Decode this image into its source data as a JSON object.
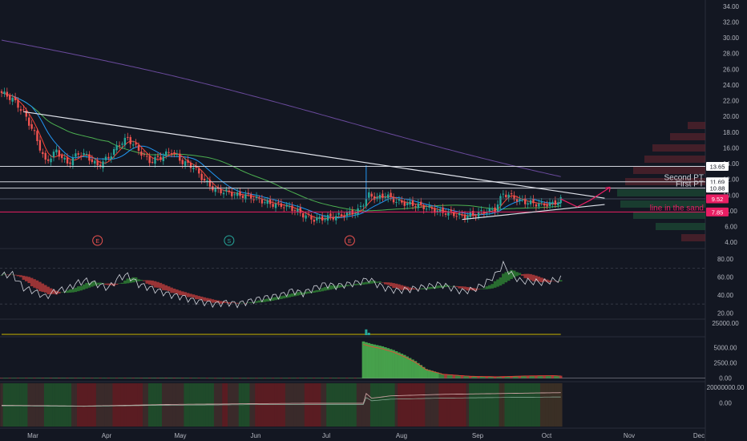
{
  "chart_data": {
    "type": "candlestick",
    "x_labels": [
      "Mar",
      "Apr",
      "May",
      "Jun",
      "Jul",
      "Aug",
      "Sep",
      "Oct",
      "Nov",
      "Dec"
    ],
    "price_axis": {
      "ticks": [
        "34.00",
        "32.00",
        "30.00",
        "28.00",
        "26.00",
        "24.00",
        "22.00",
        "20.00",
        "18.00",
        "16.00",
        "14.00",
        "12.00",
        "10.00",
        "8.00",
        "6.00",
        "4.00"
      ],
      "range": [
        3.2,
        34.8
      ]
    },
    "price_series": [
      [
        0,
        23.0
      ],
      [
        4,
        22.2
      ],
      [
        8,
        20.5
      ],
      [
        12,
        17.8
      ],
      [
        16,
        14.2
      ],
      [
        20,
        15.6
      ],
      [
        24,
        14.0
      ],
      [
        28,
        15.3
      ],
      [
        31,
        15.0
      ],
      [
        35,
        13.7
      ],
      [
        39,
        14.8
      ],
      [
        43,
        16.5
      ],
      [
        46,
        17.2
      ],
      [
        50,
        15.7
      ],
      [
        54,
        14.3
      ],
      [
        58,
        14.8
      ],
      [
        62,
        15.6
      ],
      [
        66,
        14.2
      ],
      [
        70,
        13.6
      ],
      [
        74,
        11.8
      ],
      [
        78,
        10.6
      ],
      [
        82,
        10.4
      ],
      [
        86,
        10.0
      ],
      [
        90,
        9.9
      ],
      [
        94,
        9.4
      ],
      [
        98,
        8.9
      ],
      [
        102,
        8.7
      ],
      [
        106,
        8.3
      ],
      [
        110,
        7.5
      ],
      [
        114,
        6.9
      ],
      [
        118,
        7.1
      ],
      [
        122,
        7.3
      ],
      [
        126,
        7.6
      ],
      [
        130,
        8.0
      ],
      [
        134,
        10.0
      ],
      [
        137,
        9.6
      ],
      [
        140,
        10.0
      ],
      [
        144,
        9.2
      ],
      [
        148,
        8.9
      ],
      [
        152,
        8.7
      ],
      [
        156,
        8.3
      ],
      [
        160,
        7.9
      ],
      [
        164,
        7.7
      ],
      [
        168,
        7.3
      ],
      [
        172,
        7.5
      ],
      [
        176,
        7.9
      ],
      [
        180,
        8.2
      ],
      [
        183,
        10.2
      ],
      [
        186,
        9.8
      ],
      [
        189,
        9.3
      ],
      [
        193,
        9.0
      ],
      [
        197,
        8.8
      ],
      [
        201,
        8.9
      ],
      [
        204,
        9.4
      ]
    ],
    "levels": [
      {
        "value": 13.65,
        "label": "13.65",
        "note": ""
      },
      {
        "value": 11.69,
        "label": "11.69",
        "note": "Second PT"
      },
      {
        "value": 10.88,
        "label": "10.88",
        "note": "First PT"
      },
      {
        "value": 9.52,
        "label": "9.52",
        "note": ""
      },
      {
        "value": 7.85,
        "label": "7.85",
        "note": "line in the sand"
      }
    ],
    "event_markers": [
      {
        "label": "E",
        "x": 35,
        "type": "earnings"
      },
      {
        "label": "S",
        "x": 83,
        "type": "split"
      },
      {
        "label": "E",
        "x": 127,
        "type": "earnings"
      }
    ],
    "rsi_panel": {
      "ticks": [
        "80.00",
        "60.00",
        "40.00",
        "20.00"
      ],
      "range": [
        15,
        90
      ],
      "series": [
        [
          0,
          62
        ],
        [
          4,
          63
        ],
        [
          8,
          48
        ],
        [
          12,
          44
        ],
        [
          16,
          38
        ],
        [
          20,
          45
        ],
        [
          24,
          47
        ],
        [
          28,
          54
        ],
        [
          31,
          56
        ],
        [
          35,
          52
        ],
        [
          39,
          48
        ],
        [
          43,
          60
        ],
        [
          46,
          62
        ],
        [
          50,
          52
        ],
        [
          54,
          48
        ],
        [
          58,
          44
        ],
        [
          62,
          40
        ],
        [
          66,
          38
        ],
        [
          70,
          34
        ],
        [
          74,
          32
        ],
        [
          78,
          30
        ],
        [
          82,
          32
        ],
        [
          86,
          30
        ],
        [
          90,
          33
        ],
        [
          94,
          36
        ],
        [
          98,
          38
        ],
        [
          102,
          40
        ],
        [
          106,
          45
        ],
        [
          110,
          42
        ],
        [
          114,
          48
        ],
        [
          118,
          52
        ],
        [
          122,
          50
        ],
        [
          126,
          52
        ],
        [
          130,
          54
        ],
        [
          134,
          58
        ],
        [
          137,
          52
        ],
        [
          140,
          48
        ],
        [
          144,
          45
        ],
        [
          148,
          46
        ],
        [
          152,
          48
        ],
        [
          156,
          50
        ],
        [
          160,
          52
        ],
        [
          164,
          48
        ],
        [
          168,
          44
        ],
        [
          172,
          46
        ],
        [
          176,
          52
        ],
        [
          180,
          62
        ],
        [
          183,
          74
        ],
        [
          186,
          63
        ],
        [
          189,
          56
        ],
        [
          193,
          55
        ],
        [
          197,
          54
        ],
        [
          201,
          56
        ],
        [
          204,
          58
        ]
      ]
    },
    "volume_panel": {
      "ticks": [
        "25000.00"
      ],
      "range": [
        0,
        30000
      ],
      "spike": [
        [
          111,
          12000
        ],
        [
          112,
          5000
        ]
      ]
    },
    "accumulation_panel": {
      "ticks": [
        "5000.00",
        "2500.00",
        "0.00"
      ],
      "range": [
        -300,
        6500
      ],
      "series": [
        [
          0,
          30
        ],
        [
          20,
          60
        ],
        [
          40,
          40
        ],
        [
          60,
          70
        ],
        [
          80,
          20
        ],
        [
          100,
          30
        ],
        [
          110,
          40
        ],
        [
          111,
          6000
        ],
        [
          114,
          5600
        ],
        [
          118,
          5200
        ],
        [
          122,
          4600
        ],
        [
          126,
          3800
        ],
        [
          130,
          2800
        ],
        [
          134,
          1500
        ],
        [
          140,
          700
        ],
        [
          150,
          350
        ],
        [
          160,
          250
        ],
        [
          170,
          400
        ],
        [
          180,
          450
        ],
        [
          190,
          300
        ],
        [
          204,
          200
        ]
      ]
    },
    "flow_panel": {
      "ticks": [
        "20000000.00",
        "0.00"
      ],
      "range": [
        -30000000,
        25000000
      ],
      "series": [
        [
          0,
          -3000000
        ],
        [
          30,
          -4000000
        ],
        [
          60,
          -2000000
        ],
        [
          90,
          -1000000
        ],
        [
          110,
          -500000
        ],
        [
          111,
          12000000
        ],
        [
          113,
          6000000
        ],
        [
          120,
          9000000
        ],
        [
          140,
          11000000
        ],
        [
          160,
          12000000
        ],
        [
          180,
          13000000
        ],
        [
          204,
          13500000
        ]
      ]
    },
    "colors": {
      "background": "#131722",
      "up": "#26a69a",
      "down": "#ef5350",
      "level": "#d1d4dc",
      "level_magenta": "#e91e63",
      "trendline": "#e0e3eb",
      "ma_purple": "#6a4a9c",
      "ma_green": "#4caf50",
      "ma_blue": "#2196f3",
      "ma_red": "#f44336",
      "rsi_line": "#d1d4dc",
      "axis_text": "#b2b5be"
    }
  }
}
